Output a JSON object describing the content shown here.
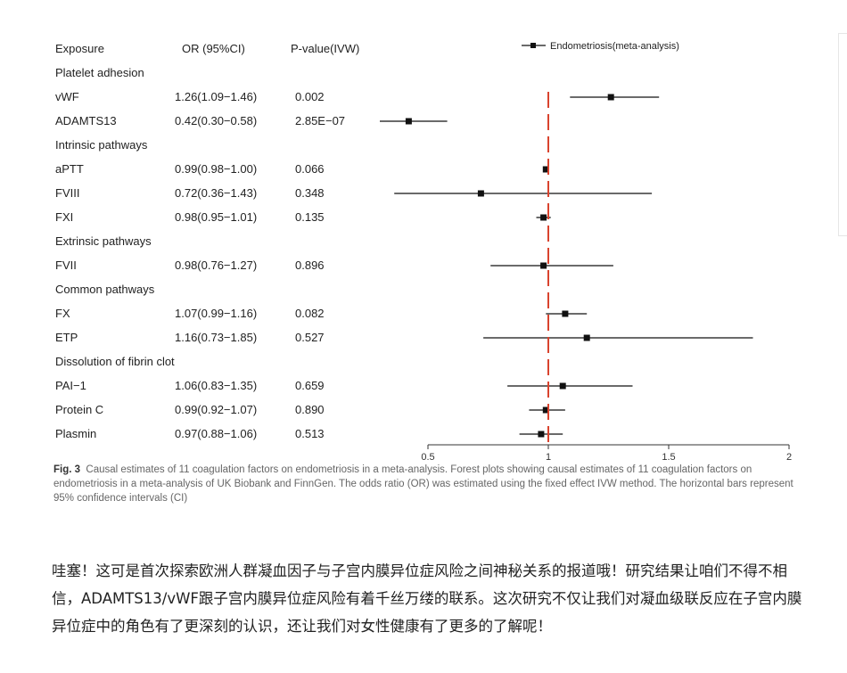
{
  "figure": {
    "headers": {
      "exposure": "Exposure",
      "or": "OR (95%CI)",
      "p": "P-value(IVW)"
    },
    "legend_label": "Endometriosis(meta-analysis)",
    "caption_label": "Fig. 3",
    "caption_text": "Causal estimates of 11 coagulation factors on endometriosis in a meta-analysis. Forest plots showing causal estimates of 11 coagulation factors on endometriosis in a meta-analysis of UK Biobank and FinnGen. The odds ratio (OR) was estimated using the fixed effect IVW method. The horizontal bars represent 95% confidence intervals (CI)",
    "colors": {
      "reference_line": "#d9432e",
      "marks": "#111111"
    }
  },
  "chart_data": {
    "type": "forest",
    "xlim": [
      0.5,
      2
    ],
    "x_ticks": [
      "0.5",
      "1",
      "1.5",
      "2"
    ],
    "reference_value": 1,
    "rows": [
      {
        "kind": "group",
        "label": "Platelet adhesion"
      },
      {
        "kind": "item",
        "label": "vWF",
        "or_text": "1.26(1.09−1.46)",
        "p": "0.002",
        "or": 1.26,
        "lo": 1.09,
        "hi": 1.46
      },
      {
        "kind": "item",
        "label": "ADAMTS13",
        "or_text": "0.42(0.30−0.58)",
        "p": "2.85E−07",
        "or": 0.42,
        "lo": 0.3,
        "hi": 0.58
      },
      {
        "kind": "group",
        "label": "Intrinsic pathways"
      },
      {
        "kind": "item",
        "label": "aPTT",
        "or_text": "0.99(0.98−1.00)",
        "p": "0.066",
        "or": 0.99,
        "lo": 0.98,
        "hi": 1.0
      },
      {
        "kind": "item",
        "label": "FVIII",
        "or_text": "0.72(0.36−1.43)",
        "p": "0.348",
        "or": 0.72,
        "lo": 0.36,
        "hi": 1.43
      },
      {
        "kind": "item",
        "label": "FXI",
        "or_text": "0.98(0.95−1.01)",
        "p": "0.135",
        "or": 0.98,
        "lo": 0.95,
        "hi": 1.01
      },
      {
        "kind": "group",
        "label": "Extrinsic pathways"
      },
      {
        "kind": "item",
        "label": "FVII",
        "or_text": "0.98(0.76−1.27)",
        "p": "0.896",
        "or": 0.98,
        "lo": 0.76,
        "hi": 1.27
      },
      {
        "kind": "group",
        "label": "Common pathways"
      },
      {
        "kind": "item",
        "label": "FX",
        "or_text": "1.07(0.99−1.16)",
        "p": "0.082",
        "or": 1.07,
        "lo": 0.99,
        "hi": 1.16
      },
      {
        "kind": "item",
        "label": "ETP",
        "or_text": "1.16(0.73−1.85)",
        "p": "0.527",
        "or": 1.16,
        "lo": 0.73,
        "hi": 1.85
      },
      {
        "kind": "group",
        "label": "Dissolution of fibrin clot"
      },
      {
        "kind": "item",
        "label": "PAI−1",
        "or_text": "1.06(0.83−1.35)",
        "p": "0.659",
        "or": 1.06,
        "lo": 0.83,
        "hi": 1.35
      },
      {
        "kind": "item",
        "label": "Protein C",
        "or_text": "0.99(0.92−1.07)",
        "p": "0.890",
        "or": 0.99,
        "lo": 0.92,
        "hi": 1.07
      },
      {
        "kind": "item",
        "label": "Plasmin",
        "or_text": "0.97(0.88−1.06)",
        "p": "0.513",
        "or": 0.97,
        "lo": 0.88,
        "hi": 1.06
      }
    ]
  },
  "article": {
    "paragraph": "哇塞！这可是首次探索欧洲人群凝血因子与子宫内膜异位症风险之间神秘关系的报道哦！研究结果让咱们不得不相信，ADAMTS13/vWF跟子宫内膜异位症风险有着千丝万缕的联系。这次研究不仅让我们对凝血级联反应在子宫内膜异位症中的角色有了更深刻的认识，还让我们对女性健康有了更多的了解呢！"
  }
}
